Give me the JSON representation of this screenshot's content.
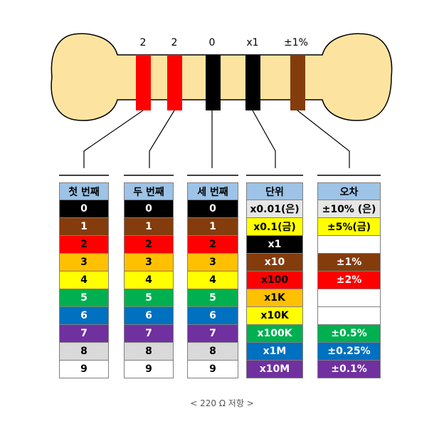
{
  "band_labels": [
    "2",
    "2",
    "0",
    "x1",
    "±1%"
  ],
  "band_colors": [
    "#ff0000",
    "#ff0000",
    "#000000",
    "#000000",
    "#843c0c"
  ],
  "digits": [
    {
      "v": "0",
      "bg": "#000000",
      "fg": "#ffffff"
    },
    {
      "v": "1",
      "bg": "#843c0c",
      "fg": "#ffffff"
    },
    {
      "v": "2",
      "bg": "#ff0000",
      "fg": "#000000"
    },
    {
      "v": "3",
      "bg": "#ffc000",
      "fg": "#000000"
    },
    {
      "v": "4",
      "bg": "#ffff00",
      "fg": "#000000"
    },
    {
      "v": "5",
      "bg": "#00b050",
      "fg": "#ffffff"
    },
    {
      "v": "6",
      "bg": "#0070c0",
      "fg": "#ffffff"
    },
    {
      "v": "7",
      "bg": "#7030a0",
      "fg": "#ffffff"
    },
    {
      "v": "8",
      "bg": "#d9d9d9",
      "fg": "#000000"
    },
    {
      "v": "9",
      "bg": "#ffffff",
      "fg": "#000000"
    }
  ],
  "columns": [
    {
      "header": "첫 번째",
      "type": "digits"
    },
    {
      "header": "두 번째",
      "type": "digits"
    },
    {
      "header": "세 번째",
      "type": "digits"
    },
    {
      "header": "단위",
      "type": "custom",
      "rows": [
        {
          "v": "x0.01(은)",
          "bg": "#e6e6e6",
          "fg": "#000000"
        },
        {
          "v": "x0.1(금)",
          "bg": "#ffff00",
          "fg": "#000000"
        },
        {
          "v": "x1",
          "bg": "#000000",
          "fg": "#ffffff"
        },
        {
          "v": "x10",
          "bg": "#843c0c",
          "fg": "#ffffff"
        },
        {
          "v": "x100",
          "bg": "#ff0000",
          "fg": "#000000"
        },
        {
          "v": "x1K",
          "bg": "#ffc000",
          "fg": "#000000"
        },
        {
          "v": "x10K",
          "bg": "#ffff00",
          "fg": "#000000"
        },
        {
          "v": "x100K",
          "bg": "#00b050",
          "fg": "#ffffff"
        },
        {
          "v": "x1M",
          "bg": "#0070c0",
          "fg": "#ffffff"
        },
        {
          "v": "x10M",
          "bg": "#7030a0",
          "fg": "#ffffff"
        }
      ]
    },
    {
      "header": "오차",
      "type": "custom",
      "rows": [
        {
          "v": "±10% (은)",
          "bg": "#e6e6e6",
          "fg": "#000000"
        },
        {
          "v": "±5%(금)",
          "bg": "#ffff00",
          "fg": "#000000"
        },
        {
          "v": "",
          "bg": "#ffffff",
          "fg": "#000000"
        },
        {
          "v": "±1%",
          "bg": "#843c0c",
          "fg": "#ffffff"
        },
        {
          "v": "±2%",
          "bg": "#ff0000",
          "fg": "#ffffff"
        },
        {
          "v": "",
          "bg": "#ffffff",
          "fg": "#000000"
        },
        {
          "v": "",
          "bg": "#ffffff",
          "fg": "#000000"
        },
        {
          "v": "±0.5%",
          "bg": "#00b050",
          "fg": "#ffffff"
        },
        {
          "v": "±0.25%",
          "bg": "#0070c0",
          "fg": "#ffffff"
        },
        {
          "v": "±0.1%",
          "bg": "#7030a0",
          "fg": "#ffffff"
        }
      ]
    }
  ],
  "caption": "< 220 Ω 저항 >",
  "colors": {
    "resistor_body": "#fce4a0",
    "resistor_outline": "#000000",
    "header_bg": "#9dc3e6"
  }
}
